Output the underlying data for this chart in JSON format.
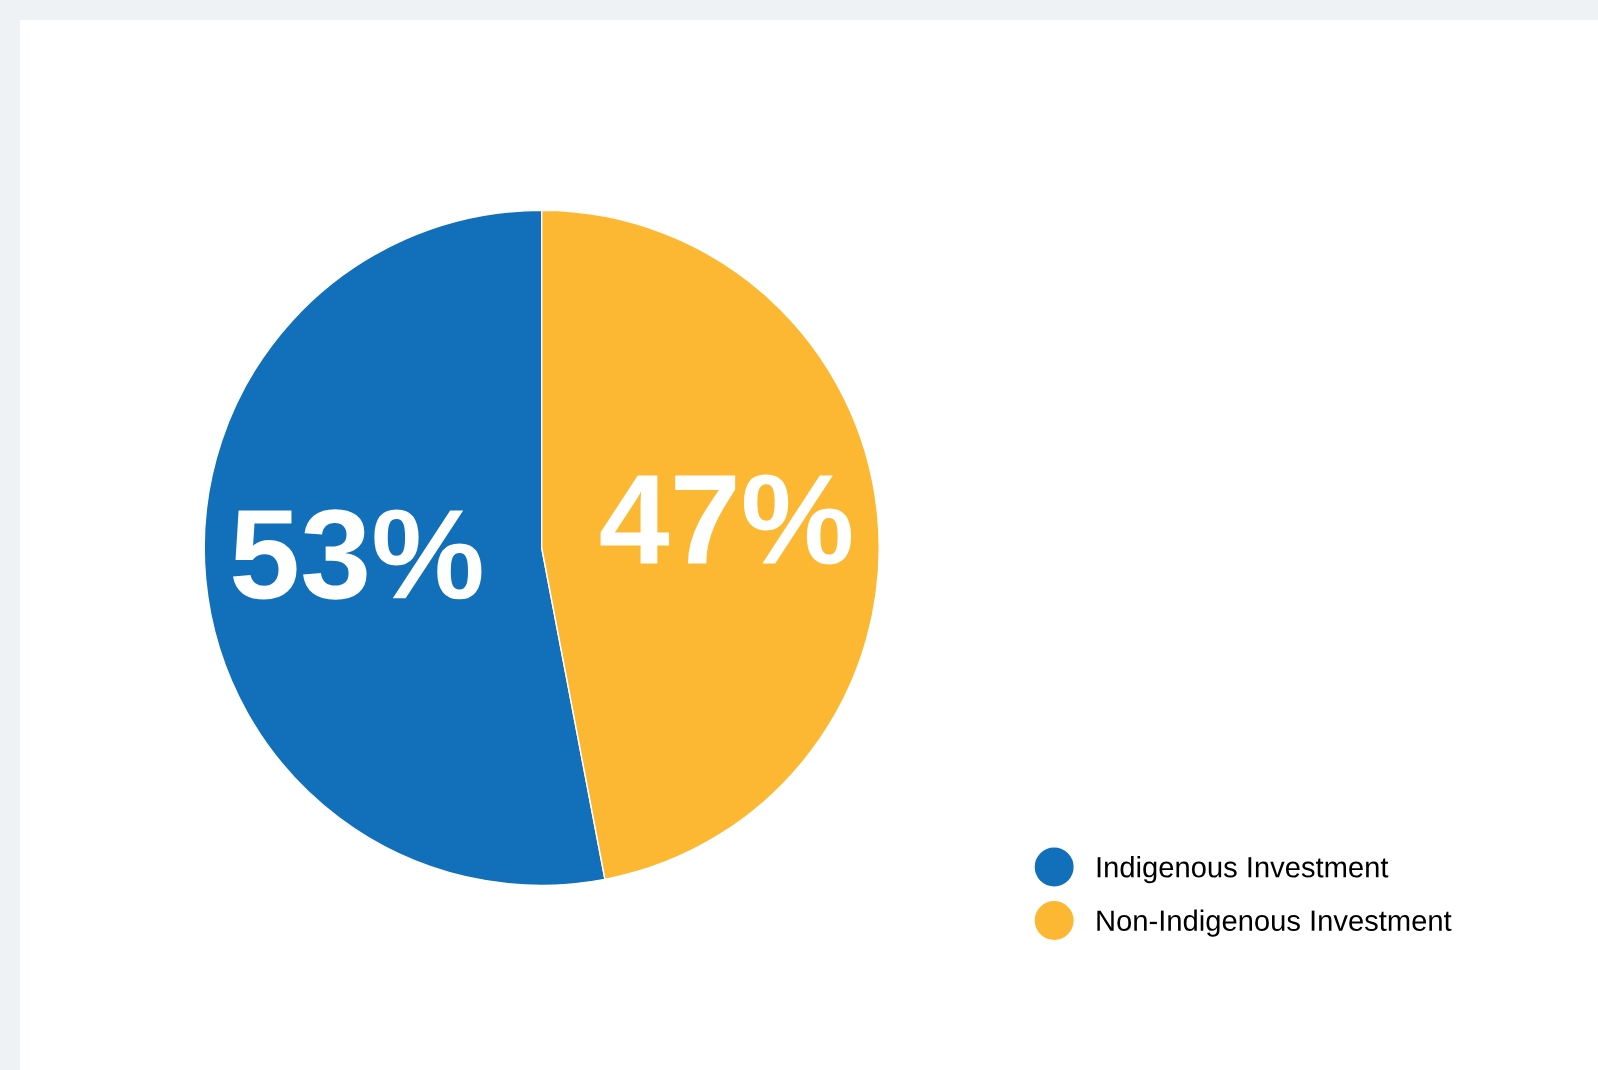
{
  "chart_data": {
    "type": "pie",
    "categories": [
      "Indigenous Investment",
      "Non-Indigenous Investment"
    ],
    "values": [
      53,
      47
    ],
    "colors": [
      "#1170b9",
      "#fdb833"
    ],
    "value_labels": [
      "53%",
      "47%"
    ],
    "legend": "bottom right"
  }
}
